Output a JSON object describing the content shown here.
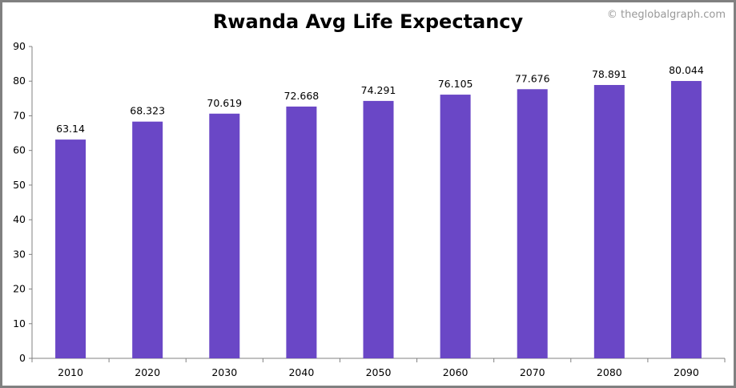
{
  "chart_data": {
    "type": "bar",
    "title": "Rwanda Avg Life Expectancy",
    "credit": "© theglobalgraph.com",
    "categories": [
      "2010",
      "2020",
      "2030",
      "2040",
      "2050",
      "2060",
      "2070",
      "2080",
      "2090"
    ],
    "values": [
      63.14,
      68.323,
      70.619,
      72.668,
      74.291,
      76.105,
      77.676,
      78.891,
      80.044
    ],
    "value_labels": [
      "63.14",
      "68.323",
      "70.619",
      "72.668",
      "74.291",
      "76.105",
      "77.676",
      "78.891",
      "80.044"
    ],
    "ylim": [
      0,
      90
    ],
    "yticks": [
      0,
      10,
      20,
      30,
      40,
      50,
      60,
      70,
      80,
      90
    ],
    "grid": false,
    "bar_color": "#6a47c6",
    "axis_color": "#808080"
  }
}
